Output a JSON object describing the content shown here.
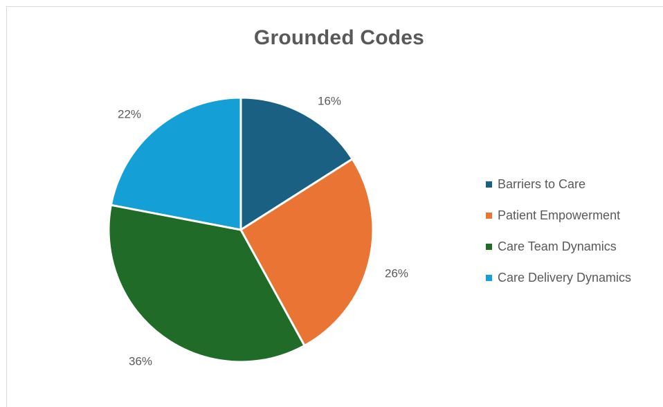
{
  "chart_data": {
    "type": "pie",
    "title": "Grounded Codes",
    "categories": [
      "Barriers to Care",
      "Patient Empowerment",
      "Care Team Dynamics",
      "Care Delivery Dynamics"
    ],
    "values": [
      16,
      26,
      36,
      22
    ],
    "labels": [
      "16%",
      "26%",
      "36%",
      "22%"
    ],
    "colors": [
      "#1a6083",
      "#ea7433",
      "#1f6b27",
      "#149fd6"
    ],
    "legend_position": "right"
  }
}
